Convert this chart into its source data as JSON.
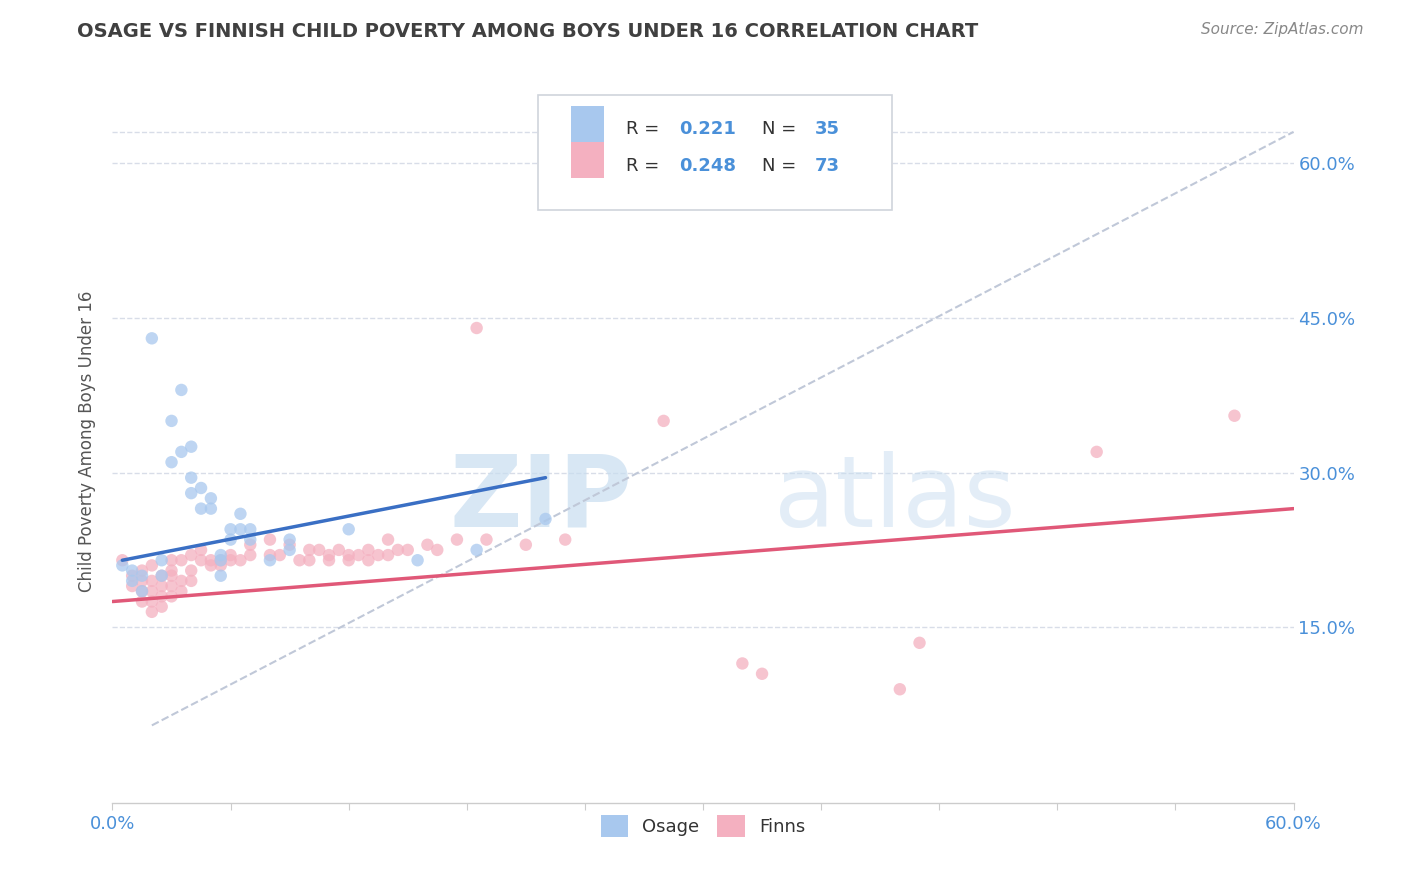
{
  "title": "OSAGE VS FINNISH CHILD POVERTY AMONG BOYS UNDER 16 CORRELATION CHART",
  "source": "Source: ZipAtlas.com",
  "ylabel": "Child Poverty Among Boys Under 16",
  "ytick_labels": [
    "15.0%",
    "30.0%",
    "45.0%",
    "60.0%"
  ],
  "ytick_values": [
    0.15,
    0.3,
    0.45,
    0.6
  ],
  "xmin": 0.0,
  "xmax": 0.6,
  "ymin": -0.02,
  "ymax": 0.68,
  "osage_color": "#a8c8ee",
  "finns_color": "#f4b0c0",
  "osage_line_color": "#3a6fc4",
  "finns_line_color": "#e05878",
  "trend_line_color": "#c0c8d8",
  "bg_color": "#ffffff",
  "grid_color": "#d8dde8",
  "axis_color": "#cccccc",
  "title_color": "#404040",
  "tick_color": "#4a90d9",
  "legend_text_color": "#333333",
  "legend_border_color": "#d0d4dc",
  "osage_points": [
    [
      0.005,
      0.21
    ],
    [
      0.01,
      0.205
    ],
    [
      0.01,
      0.195
    ],
    [
      0.015,
      0.2
    ],
    [
      0.015,
      0.185
    ],
    [
      0.02,
      0.43
    ],
    [
      0.025,
      0.215
    ],
    [
      0.025,
      0.2
    ],
    [
      0.03,
      0.35
    ],
    [
      0.03,
      0.31
    ],
    [
      0.035,
      0.38
    ],
    [
      0.035,
      0.32
    ],
    [
      0.04,
      0.325
    ],
    [
      0.04,
      0.295
    ],
    [
      0.04,
      0.28
    ],
    [
      0.045,
      0.285
    ],
    [
      0.045,
      0.265
    ],
    [
      0.05,
      0.275
    ],
    [
      0.05,
      0.265
    ],
    [
      0.055,
      0.22
    ],
    [
      0.055,
      0.215
    ],
    [
      0.055,
      0.2
    ],
    [
      0.06,
      0.245
    ],
    [
      0.06,
      0.235
    ],
    [
      0.065,
      0.26
    ],
    [
      0.065,
      0.245
    ],
    [
      0.07,
      0.245
    ],
    [
      0.07,
      0.235
    ],
    [
      0.08,
      0.215
    ],
    [
      0.09,
      0.235
    ],
    [
      0.09,
      0.225
    ],
    [
      0.12,
      0.245
    ],
    [
      0.155,
      0.215
    ],
    [
      0.185,
      0.225
    ],
    [
      0.22,
      0.255
    ]
  ],
  "finns_points": [
    [
      0.005,
      0.215
    ],
    [
      0.01,
      0.2
    ],
    [
      0.01,
      0.19
    ],
    [
      0.015,
      0.205
    ],
    [
      0.015,
      0.195
    ],
    [
      0.015,
      0.185
    ],
    [
      0.015,
      0.175
    ],
    [
      0.02,
      0.21
    ],
    [
      0.02,
      0.195
    ],
    [
      0.02,
      0.185
    ],
    [
      0.02,
      0.175
    ],
    [
      0.02,
      0.165
    ],
    [
      0.025,
      0.2
    ],
    [
      0.025,
      0.19
    ],
    [
      0.025,
      0.18
    ],
    [
      0.025,
      0.17
    ],
    [
      0.03,
      0.215
    ],
    [
      0.03,
      0.205
    ],
    [
      0.03,
      0.2
    ],
    [
      0.03,
      0.19
    ],
    [
      0.03,
      0.18
    ],
    [
      0.035,
      0.215
    ],
    [
      0.035,
      0.195
    ],
    [
      0.035,
      0.185
    ],
    [
      0.04,
      0.22
    ],
    [
      0.04,
      0.205
    ],
    [
      0.04,
      0.195
    ],
    [
      0.045,
      0.225
    ],
    [
      0.045,
      0.215
    ],
    [
      0.05,
      0.215
    ],
    [
      0.05,
      0.21
    ],
    [
      0.055,
      0.215
    ],
    [
      0.055,
      0.21
    ],
    [
      0.06,
      0.22
    ],
    [
      0.06,
      0.215
    ],
    [
      0.065,
      0.215
    ],
    [
      0.07,
      0.23
    ],
    [
      0.07,
      0.22
    ],
    [
      0.08,
      0.235
    ],
    [
      0.08,
      0.22
    ],
    [
      0.085,
      0.22
    ],
    [
      0.09,
      0.23
    ],
    [
      0.095,
      0.215
    ],
    [
      0.1,
      0.225
    ],
    [
      0.1,
      0.215
    ],
    [
      0.105,
      0.225
    ],
    [
      0.11,
      0.22
    ],
    [
      0.11,
      0.215
    ],
    [
      0.115,
      0.225
    ],
    [
      0.12,
      0.215
    ],
    [
      0.12,
      0.22
    ],
    [
      0.125,
      0.22
    ],
    [
      0.13,
      0.225
    ],
    [
      0.13,
      0.215
    ],
    [
      0.135,
      0.22
    ],
    [
      0.14,
      0.235
    ],
    [
      0.14,
      0.22
    ],
    [
      0.145,
      0.225
    ],
    [
      0.15,
      0.225
    ],
    [
      0.16,
      0.23
    ],
    [
      0.165,
      0.225
    ],
    [
      0.175,
      0.235
    ],
    [
      0.185,
      0.44
    ],
    [
      0.19,
      0.235
    ],
    [
      0.21,
      0.23
    ],
    [
      0.23,
      0.235
    ],
    [
      0.28,
      0.35
    ],
    [
      0.32,
      0.115
    ],
    [
      0.33,
      0.105
    ],
    [
      0.4,
      0.09
    ],
    [
      0.41,
      0.135
    ],
    [
      0.5,
      0.32
    ],
    [
      0.57,
      0.355
    ]
  ],
  "osage_trend_x": [
    0.005,
    0.22
  ],
  "osage_trend_y": [
    0.215,
    0.295
  ],
  "finns_trend_x": [
    0.0,
    0.6
  ],
  "finns_trend_y": [
    0.175,
    0.265
  ],
  "dash_line_x": [
    0.02,
    0.6
  ],
  "dash_line_y": [
    0.055,
    0.63
  ]
}
